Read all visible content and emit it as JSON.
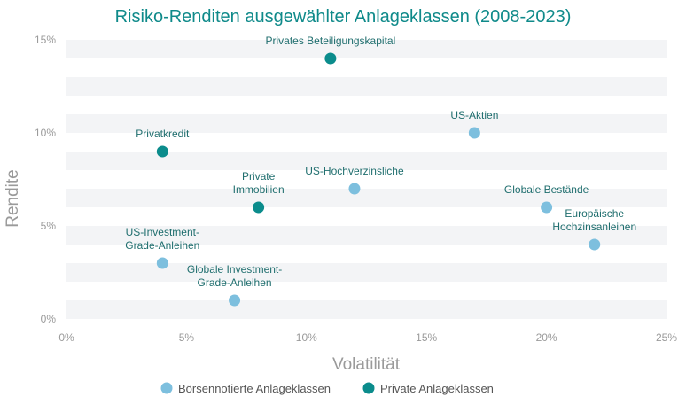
{
  "chart_data": {
    "type": "scatter",
    "title": "Risiko-Renditen ausgewählter Anlageklassen (2008-2023)",
    "xlabel": "Volatilität",
    "ylabel": "Rendite",
    "xlim": [
      0,
      25
    ],
    "ylim": [
      0,
      15
    ],
    "x_ticks": [
      "0%",
      "5%",
      "10%",
      "15%",
      "20%",
      "25%"
    ],
    "y_ticks": [
      "0%",
      "5%",
      "10%",
      "15%"
    ],
    "legend_position": "bottom",
    "colors": {
      "public": "#7dbfde",
      "private": "#0b8c8c"
    },
    "series": [
      {
        "name": "Börsennotierte Anlageklassen",
        "key": "public",
        "points": [
          {
            "label": [
              "US-Aktien"
            ],
            "x": 17,
            "y": 10
          },
          {
            "label": [
              "US-Hochverzinsliche"
            ],
            "x": 12,
            "y": 7
          },
          {
            "label": [
              "Globale Bestände"
            ],
            "x": 20,
            "y": 6
          },
          {
            "label": [
              "Europäische",
              "Hochzinsanleihen"
            ],
            "x": 22,
            "y": 4
          },
          {
            "label": [
              "US-Investment-",
              "Grade-Anleihen"
            ],
            "x": 4,
            "y": 3
          },
          {
            "label": [
              "Globale Investment-",
              "Grade-Anleihen"
            ],
            "x": 7,
            "y": 1
          }
        ]
      },
      {
        "name": "Private Anlageklassen",
        "key": "private",
        "points": [
          {
            "label": [
              "Privates Beteiligungskapital"
            ],
            "x": 11,
            "y": 14
          },
          {
            "label": [
              "Privatkredit"
            ],
            "x": 4,
            "y": 9
          },
          {
            "label": [
              "Private",
              "Immobilien"
            ],
            "x": 8,
            "y": 6
          }
        ]
      }
    ]
  }
}
